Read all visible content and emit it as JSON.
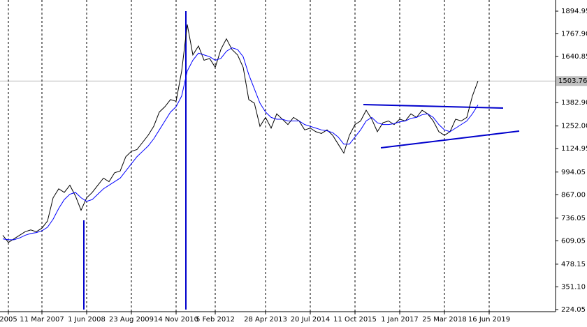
{
  "chart_data": {
    "type": "line",
    "categories": [
      null,
      "2005",
      null,
      null,
      null,
      null,
      null,
      "11 Mar 2007",
      null,
      null,
      null,
      null,
      null,
      null,
      null,
      "1 Jun 2008",
      null,
      null,
      null,
      null,
      null,
      null,
      null,
      "23 Aug 2009",
      null,
      null,
      null,
      null,
      null,
      null,
      null,
      "14 Nov 2010",
      null,
      null,
      null,
      null,
      null,
      null,
      "5 Feb 2012",
      null,
      null,
      null,
      null,
      null,
      null,
      null,
      null,
      "28 Apr 2013",
      null,
      null,
      null,
      null,
      null,
      null,
      null,
      "20 Jul 2014",
      null,
      null,
      null,
      null,
      null,
      null,
      null,
      "11 Oct 2015",
      null,
      null,
      null,
      null,
      null,
      null,
      null,
      "1 Jan 2017",
      null,
      null,
      null,
      null,
      null,
      null,
      null,
      "25 Mar 2018",
      null,
      null,
      null,
      null,
      null,
      null,
      null,
      "16 Jun 2019",
      null,
      null,
      null,
      null
    ],
    "series": [
      {
        "color": "#000000",
        "values": [
          640,
          600,
          620,
          640,
          660,
          670,
          660,
          680,
          720,
          850,
          900,
          880,
          920,
          860,
          780,
          850,
          880,
          920,
          960,
          940,
          990,
          1000,
          1080,
          1110,
          1120,
          1160,
          1200,
          1250,
          1330,
          1360,
          1400,
          1390,
          1560,
          1820,
          1650,
          1700,
          1620,
          1630,
          1580,
          1680,
          1740,
          1680,
          1650,
          1580,
          1400,
          1380,
          1250,
          1300,
          1240,
          1320,
          1290,
          1260,
          1300,
          1280,
          1230,
          1240,
          1220,
          1210,
          1230,
          1200,
          1150,
          1100,
          1200,
          1260,
          1280,
          1340,
          1290,
          1220,
          1270,
          1280,
          1260,
          1290,
          1280,
          1320,
          1300,
          1340,
          1320,
          1280,
          1220,
          1200,
          1220,
          1290,
          1280,
          1300,
          1420,
          1503.76,
          null,
          null,
          null,
          null,
          null,
          null
        ]
      },
      {
        "color": "#0000ff",
        "values": [
          620,
          615,
          615,
          625,
          640,
          650,
          655,
          665,
          685,
          730,
          790,
          840,
          870,
          880,
          850,
          830,
          840,
          870,
          900,
          920,
          940,
          960,
          1000,
          1040,
          1080,
          1110,
          1140,
          1180,
          1230,
          1280,
          1330,
          1360,
          1420,
          1560,
          1620,
          1660,
          1650,
          1640,
          1620,
          1630,
          1670,
          1690,
          1680,
          1640,
          1540,
          1460,
          1380,
          1330,
          1300,
          1290,
          1290,
          1280,
          1280,
          1280,
          1260,
          1250,
          1240,
          1230,
          1225,
          1215,
          1190,
          1150,
          1150,
          1190,
          1230,
          1280,
          1300,
          1270,
          1260,
          1260,
          1265,
          1275,
          1280,
          1295,
          1300,
          1315,
          1320,
          1300,
          1260,
          1230,
          1220,
          1240,
          1260,
          1280,
          1320,
          1370,
          null,
          null,
          null,
          null,
          null,
          null
        ]
      }
    ],
    "ylim": [
      212.3,
      1957.4
    ],
    "yticks": [
      1894.95,
      {
        "value": 1767.9,
        "label": "1767.90"
      },
      1640.85,
      {
        "value": 1382.9,
        "label": "1382.90"
      },
      {
        "value": 1252,
        "label": "1252.00"
      },
      1124.95,
      994.05,
      {
        "value": 867,
        "label": "867.00"
      },
      736.05,
      609.05,
      478.15,
      {
        "value": 351.1,
        "label": "351.10"
      },
      224.05
    ],
    "current_price": 1503.76,
    "grid": true
  }
}
